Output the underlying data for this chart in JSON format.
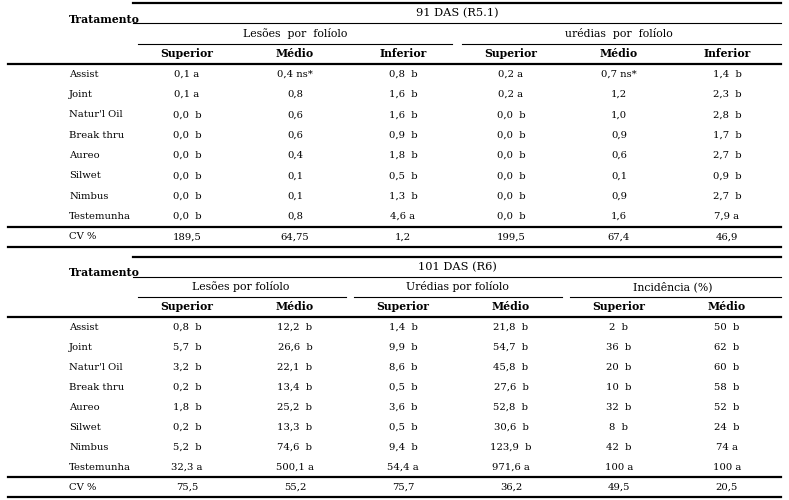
{
  "table1_title": "91 DAS (R5.1)",
  "table2_title": "101 DAS (R6)",
  "col_label": "Tratamento",
  "table1_subheaders": [
    "Lesões  por  folíolo",
    "urédias  por  folíolo"
  ],
  "table1_col_headers": [
    "Superior",
    "Médio",
    "Inferior",
    "Superior",
    "Médio",
    "Inferior"
  ],
  "table1_rows": [
    [
      "Assist",
      "0,1 a",
      "0,4 ns*",
      "0,8  b",
      "0,2 a",
      "0,7 ns*",
      "1,4  b"
    ],
    [
      "Joint",
      "0,1 a",
      "0,8",
      "1,6  b",
      "0,2 a",
      "1,2",
      "2,3  b"
    ],
    [
      "Natur'l Oil",
      "0,0  b",
      "0,6",
      "1,6  b",
      "0,0  b",
      "1,0",
      "2,8  b"
    ],
    [
      "Break thru",
      "0,0  b",
      "0,6",
      "0,9  b",
      "0,0  b",
      "0,9",
      "1,7  b"
    ],
    [
      "Aureo",
      "0,0  b",
      "0,4",
      "1,8  b",
      "0,0  b",
      "0,6",
      "2,7  b"
    ],
    [
      "Silwet",
      "0,0  b",
      "0,1",
      "0,5  b",
      "0,0  b",
      "0,1",
      "0,9  b"
    ],
    [
      "Nimbus",
      "0,0  b",
      "0,1",
      "1,3  b",
      "0,0  b",
      "0,9",
      "2,7  b"
    ],
    [
      "Testemunha",
      "0,0  b",
      "0,8",
      "4,6 a",
      "0,0  b",
      "1,6",
      "7,9 a"
    ]
  ],
  "table1_cv": [
    "CV %",
    "189,5",
    "64,75",
    "1,2",
    "199,5",
    "67,4",
    "46,9"
  ],
  "table2_subheaders": [
    "Lesões por folíolo",
    "Urédias por folíolo",
    "Incidência (%)"
  ],
  "table2_col_headers": [
    "Superior",
    "Médio",
    "Superior",
    "Médio",
    "Superior",
    "Médio"
  ],
  "table2_rows": [
    [
      "Assist",
      "0,8  b",
      "12,2  b",
      "1,4  b",
      "21,8  b",
      "2  b",
      "50  b"
    ],
    [
      "Joint",
      "5,7  b",
      "26,6  b",
      "9,9  b",
      "54,7  b",
      "36  b",
      "62  b"
    ],
    [
      "Natur'l Oil",
      "3,2  b",
      "22,1  b",
      "8,6  b",
      "45,8  b",
      "20  b",
      "60  b"
    ],
    [
      "Break thru",
      "0,2  b",
      "13,4  b",
      "0,5  b",
      "27,6  b",
      "10  b",
      "58  b"
    ],
    [
      "Aureo",
      "1,8  b",
      "25,2  b",
      "3,6  b",
      "52,8  b",
      "32  b",
      "52  b"
    ],
    [
      "Silwet",
      "0,2  b",
      "13,3  b",
      "0,5  b",
      "30,6  b",
      "8  b",
      "24  b"
    ],
    [
      "Nimbus",
      "5,2  b",
      "74,6  b",
      "9,4  b",
      "123,9  b",
      "42  b",
      "74 a"
    ],
    [
      "Testemunha",
      "32,3 a",
      "500,1 a",
      "54,4 a",
      "971,6 a",
      "100 a",
      "100 a"
    ]
  ],
  "table2_cv": [
    "CV %",
    "75,5",
    "55,2",
    "75,7",
    "36,2",
    "49,5",
    "20,5"
  ],
  "bg_color": "#ffffff",
  "line_color": "#000000",
  "text_color": "#000000",
  "fs": 7.2,
  "hfs": 7.8,
  "tfs": 8.2
}
